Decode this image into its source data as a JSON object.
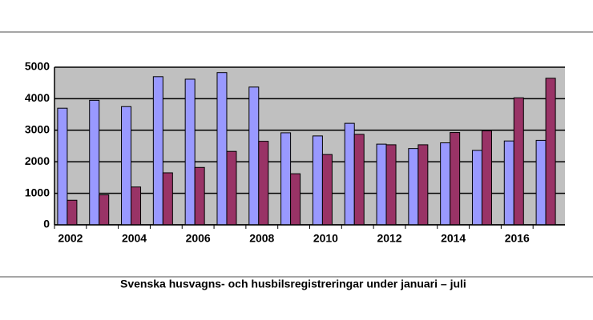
{
  "chart_data": {
    "type": "bar",
    "caption": "Svenska husvagns- och husbilsregistreringar under januari – juli",
    "categories": [
      "2002",
      null,
      "2004",
      null,
      "2006",
      null,
      "2008",
      null,
      "2010",
      null,
      "2012",
      null,
      "2014",
      null,
      "2016",
      null
    ],
    "series": [
      {
        "color": "#9999ff",
        "values": [
          3700,
          3950,
          3750,
          4700,
          4620,
          4830,
          4370,
          2920,
          2820,
          3220,
          2560,
          2420,
          2600,
          2360,
          2660,
          2680
        ]
      },
      {
        "color": "#993366",
        "values": [
          780,
          950,
          1200,
          1650,
          1820,
          2330,
          2650,
          1620,
          2230,
          2870,
          2540,
          2540,
          2930,
          2980,
          4030,
          4650
        ]
      }
    ],
    "ylim": [
      0,
      5000
    ],
    "yticks": [
      0,
      1000,
      2000,
      3000,
      4000,
      5000
    ],
    "grid": true,
    "plot_background": "#c0c0c0"
  }
}
